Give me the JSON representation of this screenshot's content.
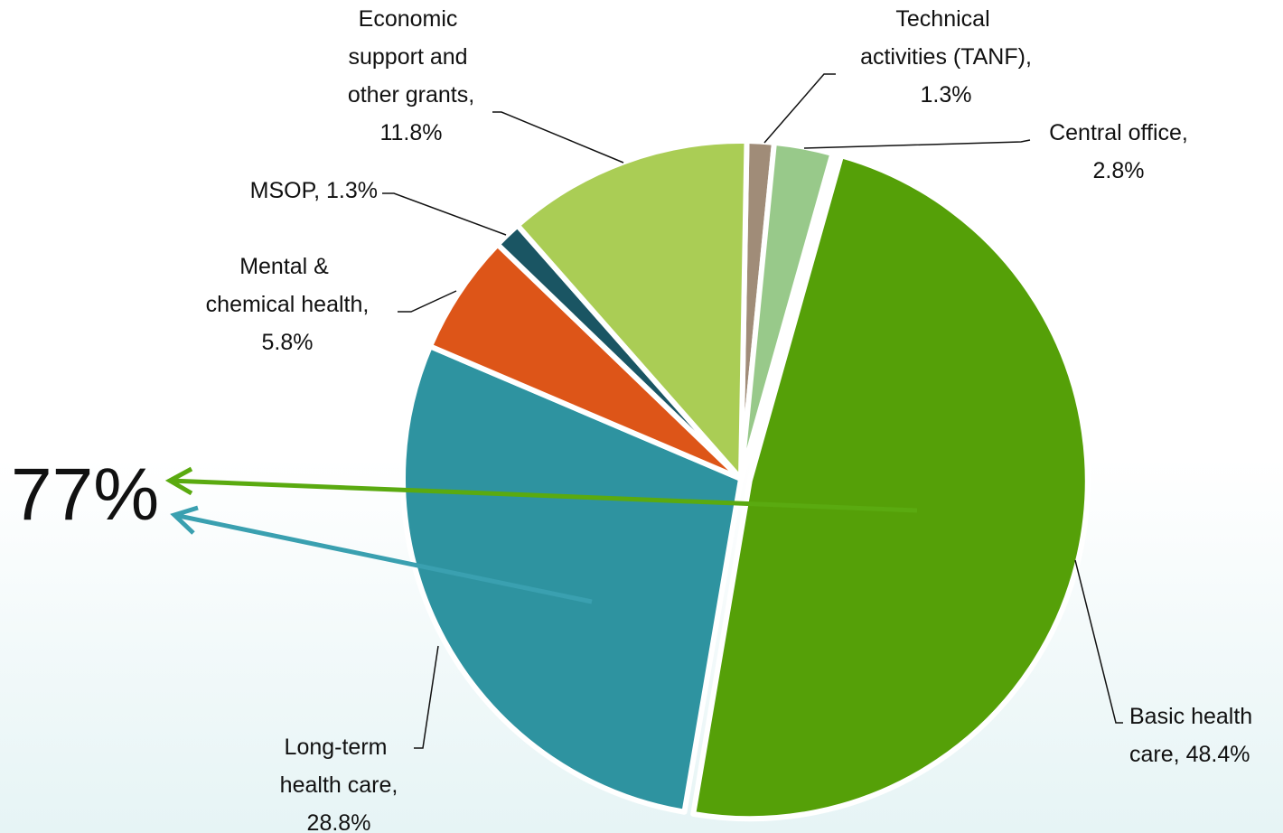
{
  "chart_data": {
    "type": "pie",
    "categories": [
      "Technical activities (TANF),",
      "Central office,",
      "Basic health care,",
      "Long-term health care,",
      "Mental & chemical health,",
      "MSOP,",
      "Economic support and other grants,"
    ],
    "values": [
      1.3,
      2.8,
      48.4,
      28.8,
      5.8,
      1.3,
      11.8
    ],
    "value_labels": [
      "1.3%",
      "2.8%",
      "48.4%",
      "28.8%",
      "5.8%",
      "1.3%",
      "11.8%"
    ],
    "colors": [
      "#a08c78",
      "#98c98a",
      "#55a008",
      "#2e93a0",
      "#dd5518",
      "#1a5563",
      "#aacd55"
    ],
    "annotation": "77%"
  }
}
